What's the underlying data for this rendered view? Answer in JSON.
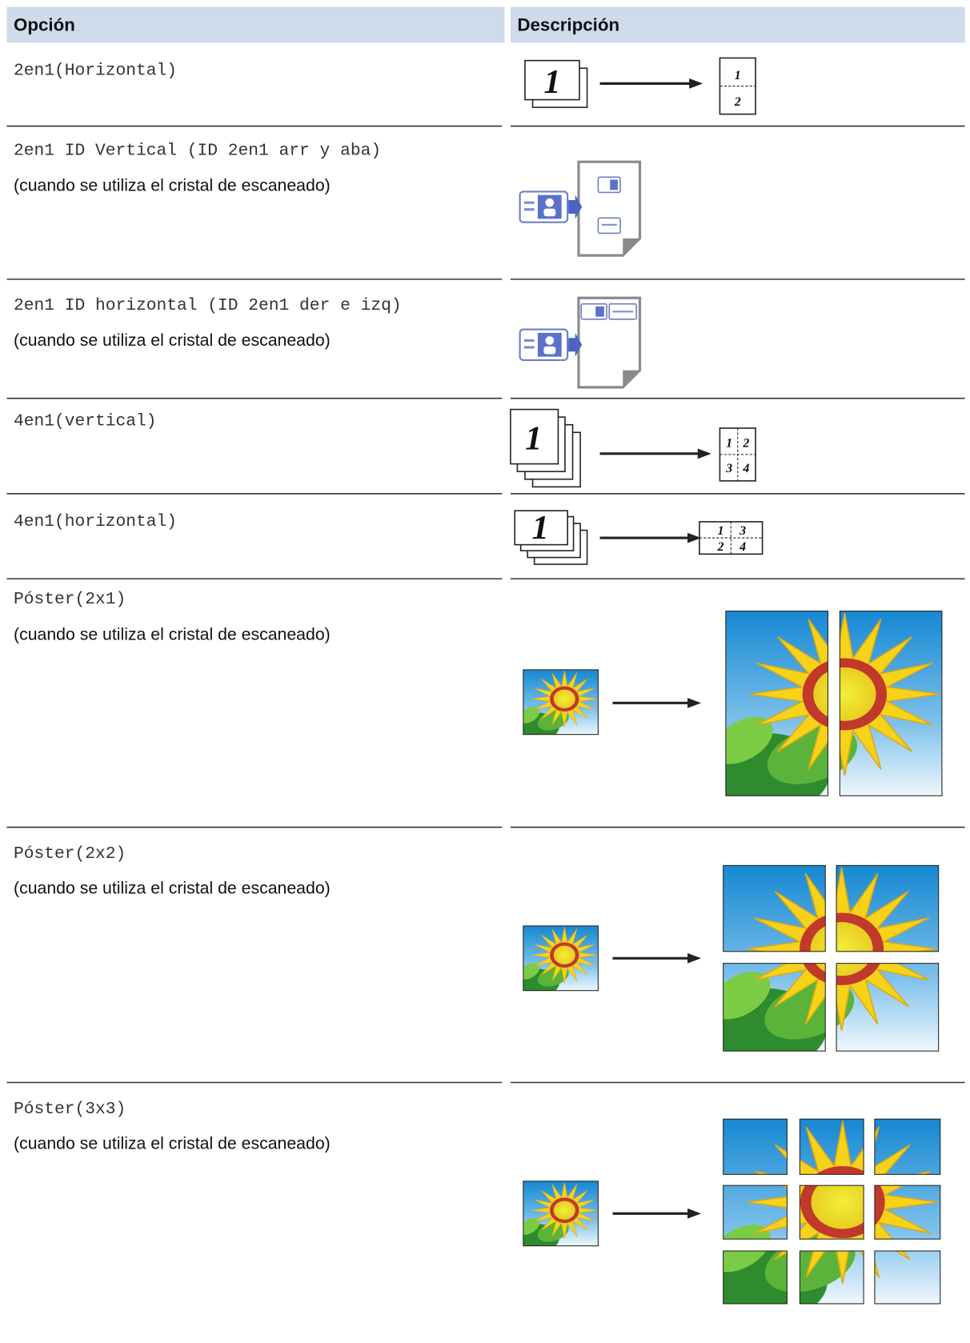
{
  "table": {
    "headers": [
      "Opción",
      "Descripción"
    ],
    "rows": [
      {
        "option": "2en1(Horizontal)",
        "figure": {
          "source": "1",
          "result": [
            "1",
            "2"
          ]
        }
      },
      {
        "option": "2en1 ID Vertical (ID 2en1 arr y aba)",
        "note": "(cuando se utiliza el cristal de escaneado)"
      },
      {
        "option": "2en1 ID horizontal (ID 2en1 der e izq)",
        "note": "(cuando se utiliza el cristal de escaneado)"
      },
      {
        "option": "4en1(vertical)",
        "figure": {
          "source": "1",
          "result": [
            "1",
            "2",
            "3",
            "4"
          ]
        }
      },
      {
        "option": "4en1(horizontal)",
        "figure": {
          "source": "1",
          "result": [
            "1",
            "3",
            "2",
            "4"
          ]
        }
      },
      {
        "option": "Póster(2x1)",
        "note": "(cuando se utiliza el cristal de escaneado)"
      },
      {
        "option": "Póster(2x2)",
        "note": "(cuando se utiliza el cristal de escaneado)"
      },
      {
        "option": "Póster(3x3)",
        "note": "(cuando se utiliza el cristal de escaneado)"
      }
    ]
  }
}
